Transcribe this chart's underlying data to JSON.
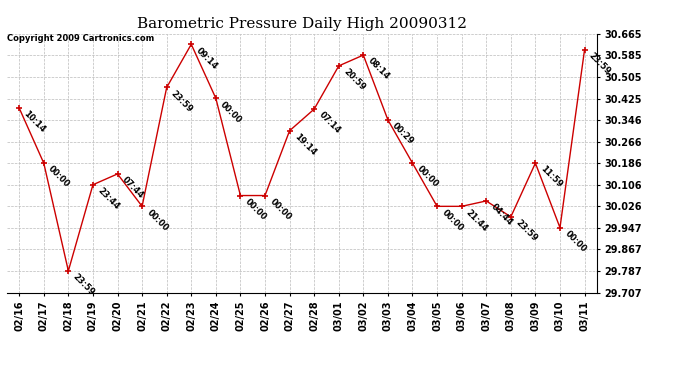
{
  "title": "Barometric Pressure Daily High 20090312",
  "copyright": "Copyright 2009 Cartronics.com",
  "background_color": "#ffffff",
  "line_color": "#cc0000",
  "grid_color": "#bbbbbb",
  "ylim": [
    29.707,
    30.665
  ],
  "yticks": [
    29.707,
    29.787,
    29.867,
    29.947,
    30.026,
    30.106,
    30.186,
    30.266,
    30.346,
    30.425,
    30.505,
    30.585,
    30.665
  ],
  "dates": [
    "02/16",
    "02/17",
    "02/18",
    "02/19",
    "02/20",
    "02/21",
    "02/22",
    "02/23",
    "02/24",
    "02/25",
    "02/26",
    "02/27",
    "02/28",
    "03/01",
    "03/02",
    "03/03",
    "03/04",
    "03/05",
    "03/06",
    "03/07",
    "03/08",
    "03/09",
    "03/10",
    "03/11"
  ],
  "values": [
    30.39,
    30.186,
    29.787,
    30.106,
    30.146,
    30.026,
    30.466,
    30.626,
    30.426,
    30.066,
    30.066,
    30.306,
    30.386,
    30.546,
    30.586,
    30.346,
    30.186,
    30.026,
    30.026,
    30.046,
    29.987,
    30.186,
    29.947,
    30.606
  ],
  "labels": [
    "10:14",
    "00:00",
    "23:59",
    "23:44",
    "07:44",
    "00:00",
    "23:59",
    "09:14",
    "00:00",
    "00:00",
    "00:00",
    "19:14",
    "07:14",
    "20:59",
    "08:14",
    "00:29",
    "00:00",
    "00:00",
    "21:44",
    "04:44",
    "23:59",
    "11:59",
    "00:00",
    "23:59"
  ],
  "title_fontsize": 11,
  "label_fontsize": 6,
  "tick_fontsize": 7,
  "copyright_fontsize": 6
}
